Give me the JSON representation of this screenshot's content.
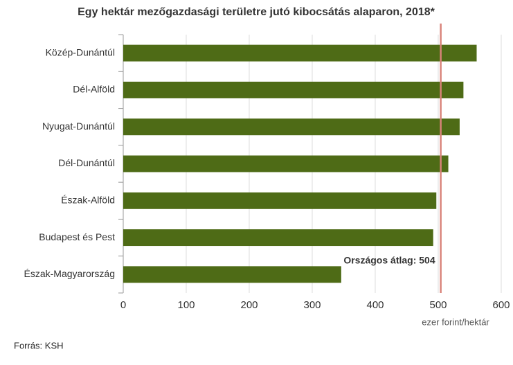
{
  "chart_data": {
    "type": "bar",
    "orientation": "horizontal",
    "title": "Egy hektár mezőgazdasági területre jutó kibocsátás alaparon, 2018*",
    "categories": [
      "Közép-Dunántúl",
      "Dél-Alföld",
      "Nyugat-Dunántúl",
      "Dél-Dunántúl",
      "Észak-Alföld",
      "Budapest és Pest",
      "Észak-Magyarország"
    ],
    "values": [
      561,
      540,
      534,
      516,
      497,
      492,
      346
    ],
    "color": "#4e6b16",
    "xlim": [
      0,
      600
    ],
    "xticks": [
      0,
      100,
      200,
      300,
      400,
      500,
      600
    ],
    "x_label": "ezer forint/hektár",
    "grid": true,
    "reference_line": {
      "value": 504,
      "label": "Országos átlag: 504",
      "color": "#d9837a"
    }
  },
  "footer": "Forrás: KSH"
}
